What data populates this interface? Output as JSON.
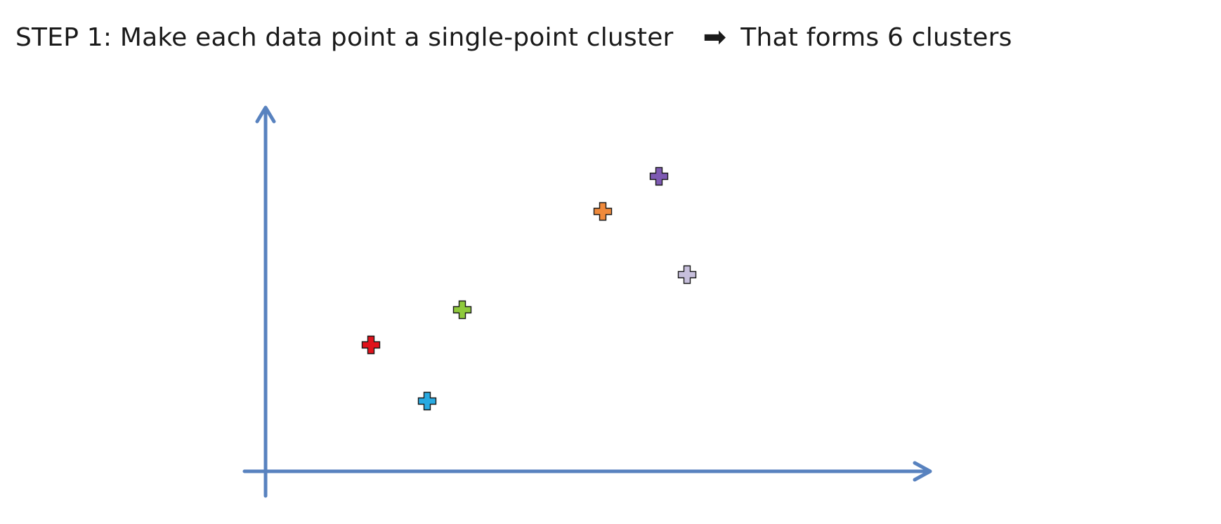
{
  "slide": {
    "step_label": "STEP 1",
    "step_separator": ":",
    "step_text": "Make each data point a single-point cluster",
    "arrow_glyph": "➡",
    "result_text": "That forms 6 clusters"
  },
  "chart_data": {
    "type": "scatter",
    "title": "",
    "xlabel": "",
    "ylabel": "",
    "xlim": [
      0,
      10
    ],
    "ylim": [
      0,
      10
    ],
    "grid": false,
    "legend": "none",
    "axis_color": "#5882bf",
    "marker_shape": "plus",
    "points": [
      {
        "x": 1.5,
        "y": 3.6,
        "color": "#e0131c",
        "icon": "red-plus"
      },
      {
        "x": 2.3,
        "y": 2.0,
        "color": "#29aae1",
        "icon": "blue-plus"
      },
      {
        "x": 2.8,
        "y": 4.6,
        "color": "#8fca3c",
        "icon": "green-plus"
      },
      {
        "x": 4.8,
        "y": 7.4,
        "color": "#f08a3c",
        "icon": "orange-plus"
      },
      {
        "x": 5.6,
        "y": 8.4,
        "color": "#7e5ab3",
        "icon": "purple-plus"
      },
      {
        "x": 6.0,
        "y": 5.6,
        "color": "#c7bfdc",
        "icon": "lilac-plus"
      }
    ]
  }
}
